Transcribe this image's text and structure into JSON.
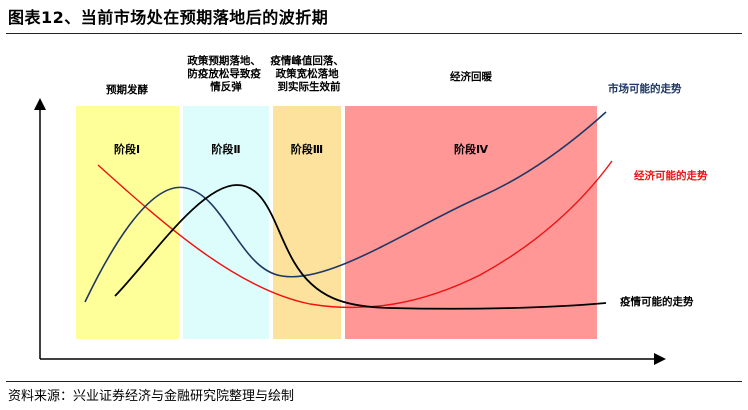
{
  "figure": {
    "title": "图表12、当前市场处在预期落地后的波折期",
    "source": "资料来源：兴业证券经济与金融研究院整理与绘制"
  },
  "phases": [
    {
      "header": [
        "预期发酵"
      ],
      "label": "阶段Ⅰ",
      "color": "#ffff99"
    },
    {
      "header": [
        "政策预期落地、",
        "防疫放松导致疫",
        "情反弹"
      ],
      "label": "阶段Ⅱ",
      "color": "#ddfdfd"
    },
    {
      "header": [
        "疫情峰值回落、",
        "政策宽松落地",
        "到实际生效前"
      ],
      "label": "阶段Ⅲ",
      "color": "#fde29e"
    },
    {
      "header": [
        "经济回暖"
      ],
      "label": "阶段Ⅳ",
      "color": "#ff9797"
    }
  ],
  "curves": {
    "market": {
      "label": "市场可能的走势",
      "color": "#1f3864"
    },
    "economy": {
      "label": "经济可能的走势",
      "color": "#ee1111"
    },
    "epidemic": {
      "label": "疫情可能的走势",
      "color": "#000000"
    }
  }
}
